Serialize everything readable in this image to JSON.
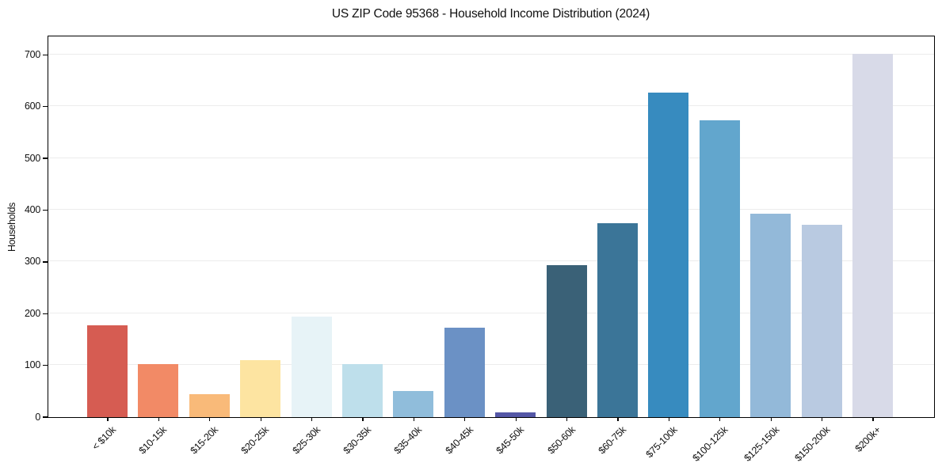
{
  "figure": {
    "title": "US ZIP Code 95368 - Household Income Distribution (2024)",
    "ylabel": "Households"
  },
  "chart_data": {
    "type": "bar",
    "title": "US ZIP Code 95368 - Household Income Distribution (2024)",
    "xlabel": "",
    "ylabel": "Households",
    "categories": [
      "< $10k",
      "$10-15k",
      "$15-20k",
      "$20-25k",
      "$25-30k",
      "$30-35k",
      "$35-40k",
      "$40-45k",
      "$45-50k",
      "$50-60k",
      "$60-75k",
      "$75-100k",
      "$100-125k",
      "$125-150k",
      "$150-200k",
      "$200k+"
    ],
    "values": [
      176,
      101,
      43,
      109,
      193,
      101,
      49,
      172,
      8,
      293,
      374,
      627,
      573,
      393,
      371,
      701
    ],
    "bar_colors": [
      "#d65c52",
      "#f28a66",
      "#f9ba79",
      "#fde4a1",
      "#e7f3f7",
      "#bedfeb",
      "#90bddb",
      "#6b91c5",
      "#5457a6",
      "#3a6177",
      "#3b7598",
      "#378bbf",
      "#62a6cd",
      "#93b9d9",
      "#b9cae1",
      "#d8dae8"
    ],
    "yticks": [
      0,
      100,
      200,
      300,
      400,
      500,
      600,
      700
    ],
    "ylim": [
      0,
      733
    ],
    "grid": "horizontal",
    "grid_color": "#ececec",
    "axis_color": "#000000",
    "text_color": "#111111",
    "background": "#ffffff",
    "legend": "none",
    "x_tick_rotation_deg": 45
  }
}
